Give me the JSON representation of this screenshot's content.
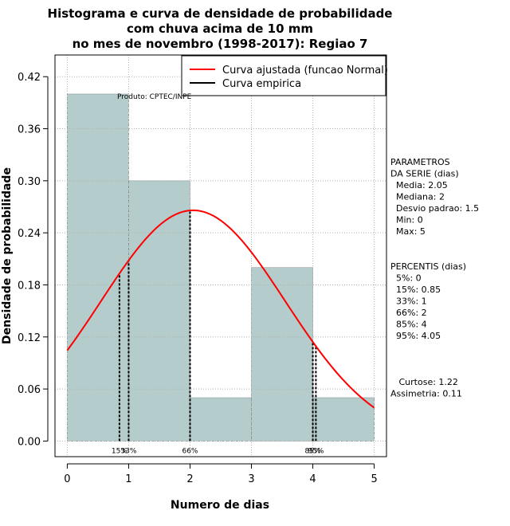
{
  "chart_data": {
    "type": "histogram",
    "title_lines": [
      "Histograma e curva de densidade de probabilidade",
      "com chuva acima de 10 mm",
      "no mes de novembro (1998-2017): Regiao 7"
    ],
    "xlabel": "Numero de dias",
    "ylabel": "Densidade de probabilidade",
    "xlim": [
      -0.2,
      5.2
    ],
    "ylim": [
      -0.018,
      0.445
    ],
    "xticks": [
      0,
      1,
      2,
      3,
      4,
      5
    ],
    "xtick_labels": [
      "0",
      "1",
      "2",
      "3",
      "4",
      "5"
    ],
    "yticks": [
      0.0,
      0.06,
      0.12,
      0.18,
      0.24,
      0.3,
      0.36,
      0.42
    ],
    "ytick_labels": [
      "0.00",
      "0.06",
      "0.12",
      "0.18",
      "0.24",
      "0.30",
      "0.36",
      "0.42"
    ],
    "bins": [
      {
        "x0": 0,
        "x1": 1,
        "density": 0.4
      },
      {
        "x0": 1,
        "x1": 2,
        "density": 0.3
      },
      {
        "x0": 2,
        "x1": 3,
        "density": 0.05
      },
      {
        "x0": 3,
        "x1": 4,
        "density": 0.2
      },
      {
        "x0": 4,
        "x1": 5,
        "density": 0.05
      }
    ],
    "fit_curve": {
      "mean": 2.05,
      "sd": 1.5,
      "x_from": 0,
      "x_to": 5
    },
    "percentile_lines": [
      {
        "x": 0.85,
        "label": "15%"
      },
      {
        "x": 1,
        "label": "33%"
      },
      {
        "x": 2,
        "label": "66%"
      },
      {
        "x": 4,
        "label": "85%"
      },
      {
        "x": 4.05,
        "label": "95%"
      }
    ],
    "legend": [
      {
        "label": "Curva ajustada (funcao Normal)",
        "color": "#ff0000"
      },
      {
        "label": "Curva empirica",
        "color": "#000000"
      }
    ],
    "producer_label": "Produto: CPTEC/INPE",
    "colors": {
      "bar_fill": "#b4cccc",
      "curve": "#ff0000",
      "grid": "#b0b0b0"
    }
  },
  "side_panel": {
    "parametros": [
      "PARAMETROS",
      "DA SERIE (dias)",
      "  Media: 2.05",
      "  Mediana: 2",
      "  Desvio padrao: 1.5",
      "  Min: 0",
      "  Max: 5"
    ],
    "percentis": [
      "PERCENTIS (dias)",
      "  5%: 0",
      "  15%: 0.85",
      "  33%: 1",
      "  66%: 2",
      "  85%: 4",
      "  95%: 4.05"
    ],
    "stats": [
      "   Curtose: 1.22",
      "Assimetria: 0.11"
    ]
  }
}
